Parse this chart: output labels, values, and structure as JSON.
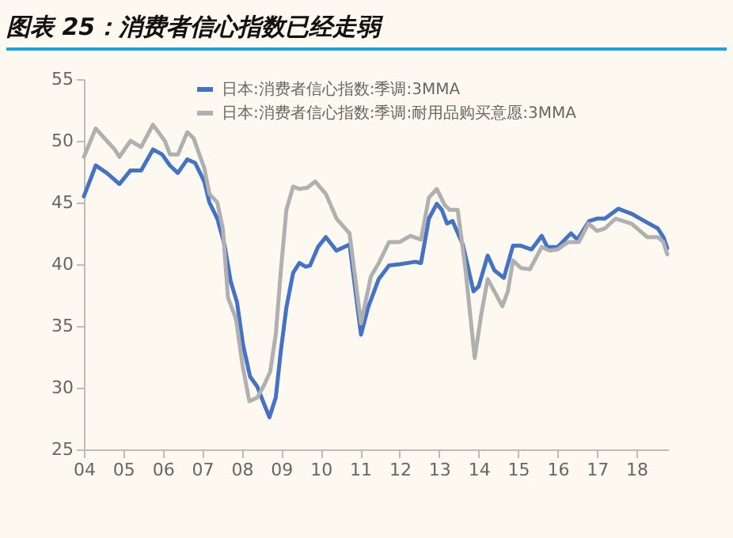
{
  "chart_data": {
    "type": "line",
    "title": "图表 25：消费者信心指数已经走弱",
    "series": [
      {
        "name": "日本:消费者信心指数:季调:3MMA",
        "color": "#4472c4",
        "x": [
          2004.0,
          2004.3,
          2004.58,
          2004.9,
          2005.18,
          2005.45,
          2005.75,
          2005.98,
          2006.18,
          2006.38,
          2006.62,
          2006.82,
          2007.05,
          2007.18,
          2007.38,
          2007.56,
          2007.72,
          2007.88,
          2008.03,
          2008.21,
          2008.39,
          2008.55,
          2008.7,
          2008.86,
          2008.99,
          2009.13,
          2009.3,
          2009.46,
          2009.62,
          2009.73,
          2009.93,
          2010.13,
          2010.4,
          2010.73,
          2011.02,
          2011.2,
          2011.47,
          2011.73,
          2012.0,
          2012.4,
          2012.54,
          2012.74,
          2012.94,
          2013.07,
          2013.2,
          2013.34,
          2013.6,
          2013.87,
          2014.0,
          2014.23,
          2014.4,
          2014.64,
          2014.87,
          2015.07,
          2015.34,
          2015.6,
          2015.74,
          2016.0,
          2016.34,
          2016.5,
          2016.8,
          2017.0,
          2017.2,
          2017.54,
          2017.87,
          2018.2,
          2018.54,
          2018.68,
          2018.78
        ],
        "values": [
          45.5,
          48.0,
          47.4,
          46.5,
          47.6,
          47.6,
          49.3,
          48.9,
          48.0,
          47.4,
          48.5,
          48.2,
          46.7,
          45.0,
          43.7,
          41.6,
          38.6,
          36.9,
          33.5,
          30.9,
          30.1,
          28.8,
          27.6,
          29.2,
          33.0,
          36.5,
          39.3,
          40.1,
          39.8,
          39.9,
          41.4,
          42.2,
          41.1,
          41.6,
          34.3,
          36.5,
          38.8,
          39.9,
          40.0,
          40.2,
          40.1,
          43.7,
          44.9,
          44.4,
          43.3,
          43.5,
          41.6,
          37.8,
          38.2,
          40.7,
          39.5,
          38.9,
          41.5,
          41.5,
          41.2,
          42.3,
          41.4,
          41.4,
          42.5,
          42.0,
          43.5,
          43.7,
          43.7,
          44.5,
          44.1,
          43.5,
          42.9,
          42.2,
          41.3
        ]
      },
      {
        "name": "日本:消费者信心指数:季调:耐用品购买意愿:3MMA",
        "color": "#b0b0b0",
        "x": [
          2004.0,
          2004.3,
          2004.58,
          2004.78,
          2004.9,
          2005.18,
          2005.45,
          2005.75,
          2006.05,
          2006.18,
          2006.38,
          2006.62,
          2006.78,
          2007.05,
          2007.18,
          2007.38,
          2007.52,
          2007.65,
          2007.85,
          2008.02,
          2008.19,
          2008.39,
          2008.55,
          2008.72,
          2008.86,
          2008.99,
          2009.13,
          2009.3,
          2009.46,
          2009.66,
          2009.86,
          2010.13,
          2010.4,
          2010.73,
          2011.02,
          2011.27,
          2011.47,
          2011.73,
          2012.0,
          2012.27,
          2012.54,
          2012.74,
          2012.94,
          2013.14,
          2013.27,
          2013.47,
          2013.67,
          2013.9,
          2014.07,
          2014.23,
          2014.4,
          2014.6,
          2014.74,
          2014.87,
          2015.07,
          2015.3,
          2015.6,
          2015.8,
          2016.0,
          2016.27,
          2016.54,
          2016.78,
          2017.0,
          2017.2,
          2017.47,
          2017.87,
          2018.27,
          2018.54,
          2018.68,
          2018.78
        ],
        "values": [
          48.7,
          51.0,
          50.0,
          49.3,
          48.7,
          50.0,
          49.5,
          51.3,
          50.0,
          48.9,
          48.9,
          50.7,
          50.2,
          47.8,
          45.7,
          45.0,
          42.9,
          37.3,
          35.6,
          31.8,
          28.9,
          29.2,
          30.1,
          31.3,
          34.3,
          39.5,
          44.4,
          46.3,
          46.1,
          46.2,
          46.7,
          45.7,
          43.7,
          42.5,
          35.2,
          39.0,
          40.1,
          41.8,
          41.8,
          42.3,
          42.0,
          45.4,
          46.1,
          44.8,
          44.4,
          44.4,
          39.5,
          32.4,
          36.0,
          38.8,
          37.8,
          36.6,
          37.8,
          40.3,
          39.7,
          39.6,
          41.4,
          41.1,
          41.2,
          41.8,
          41.8,
          43.3,
          42.7,
          42.9,
          43.7,
          43.3,
          42.2,
          42.2,
          41.8,
          40.8
        ]
      }
    ],
    "xlim": [
      2004,
      2018.8
    ],
    "xticks": [
      {
        "value": 2004,
        "label": "04"
      },
      {
        "value": 2005,
        "label": "05"
      },
      {
        "value": 2006,
        "label": "06"
      },
      {
        "value": 2007,
        "label": "07"
      },
      {
        "value": 2008,
        "label": "08"
      },
      {
        "value": 2009,
        "label": "09"
      },
      {
        "value": 2010,
        "label": "10"
      },
      {
        "value": 2011,
        "label": "11"
      },
      {
        "value": 2012,
        "label": "12"
      },
      {
        "value": 2013,
        "label": "13"
      },
      {
        "value": 2014,
        "label": "14"
      },
      {
        "value": 2015,
        "label": "15"
      },
      {
        "value": 2016,
        "label": "16"
      },
      {
        "value": 2017,
        "label": "17"
      },
      {
        "value": 2018,
        "label": "18"
      }
    ],
    "ylim": [
      25,
      55
    ],
    "yticks": [
      25,
      30,
      35,
      40,
      45,
      50,
      55
    ],
    "grid": false,
    "legend": "top left",
    "line_style": "solid"
  }
}
